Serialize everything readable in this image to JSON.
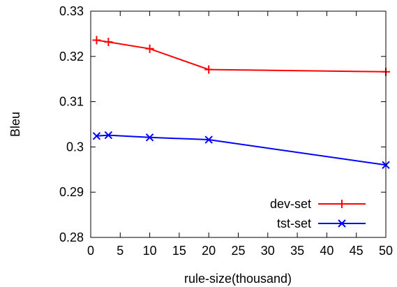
{
  "chart_data": {
    "type": "line",
    "title": "",
    "xlabel": "rule-size(thousand)",
    "ylabel": "Bleu",
    "xlim": [
      0,
      50
    ],
    "ylim": [
      0.28,
      0.33
    ],
    "x_ticks": [
      0,
      5,
      10,
      15,
      20,
      25,
      30,
      35,
      40,
      45,
      50
    ],
    "x_tick_labels": [
      "0",
      "5",
      "10",
      "15",
      "20",
      "25",
      "30",
      "35",
      "40",
      "45",
      "50"
    ],
    "y_ticks": [
      0.28,
      0.29,
      0.3,
      0.31,
      0.32,
      0.33
    ],
    "y_tick_labels": [
      "0.28",
      "0.29",
      "0.3",
      "0.31",
      "0.32",
      "0.33"
    ],
    "grid": false,
    "legend_position": "bottom-right",
    "series": [
      {
        "name": "dev-set",
        "color": "#ff0000",
        "marker": "plus",
        "x": [
          1,
          3,
          10,
          20,
          50
        ],
        "y": [
          0.3236,
          0.3232,
          0.3217,
          0.3171,
          0.3166
        ]
      },
      {
        "name": "tst-set",
        "color": "#0000ff",
        "marker": "cross",
        "x": [
          1,
          3,
          10,
          20,
          50
        ],
        "y": [
          0.3024,
          0.3026,
          0.3021,
          0.3016,
          0.296
        ]
      }
    ]
  }
}
